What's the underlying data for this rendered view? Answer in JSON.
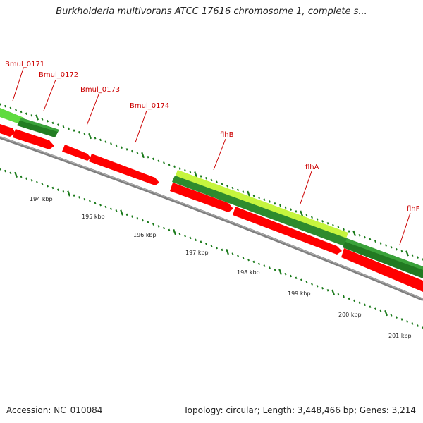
{
  "title": "Burkholderia multivorans ATCC 17616 chromosome 1, complete s...",
  "footer": {
    "accession": "Accession: NC_010084",
    "summary": "Topology: circular; Length: 3,448,466 bp; Genes: 3,214"
  },
  "colors": {
    "forward_gene": "#ff0000",
    "reverse_gene_light": "#66dd44",
    "reverse_gene_dark": "#227a22",
    "reverse_gene_lime": "#ccff44",
    "backbone": "#808080",
    "tick": "#1a7a1a",
    "label": "#cc0000"
  },
  "gene_labels": [
    "Bmul_0171",
    "Bmul_0172",
    "Bmul_0173",
    "Bmul_0174",
    "flhB",
    "flhA",
    "flhF"
  ],
  "scale_labels": [
    "194 kbp",
    "195 kbp",
    "196 kbp",
    "197 kbp",
    "198 kbp",
    "199 kbp",
    "200 kbp",
    "201 kbp"
  ]
}
